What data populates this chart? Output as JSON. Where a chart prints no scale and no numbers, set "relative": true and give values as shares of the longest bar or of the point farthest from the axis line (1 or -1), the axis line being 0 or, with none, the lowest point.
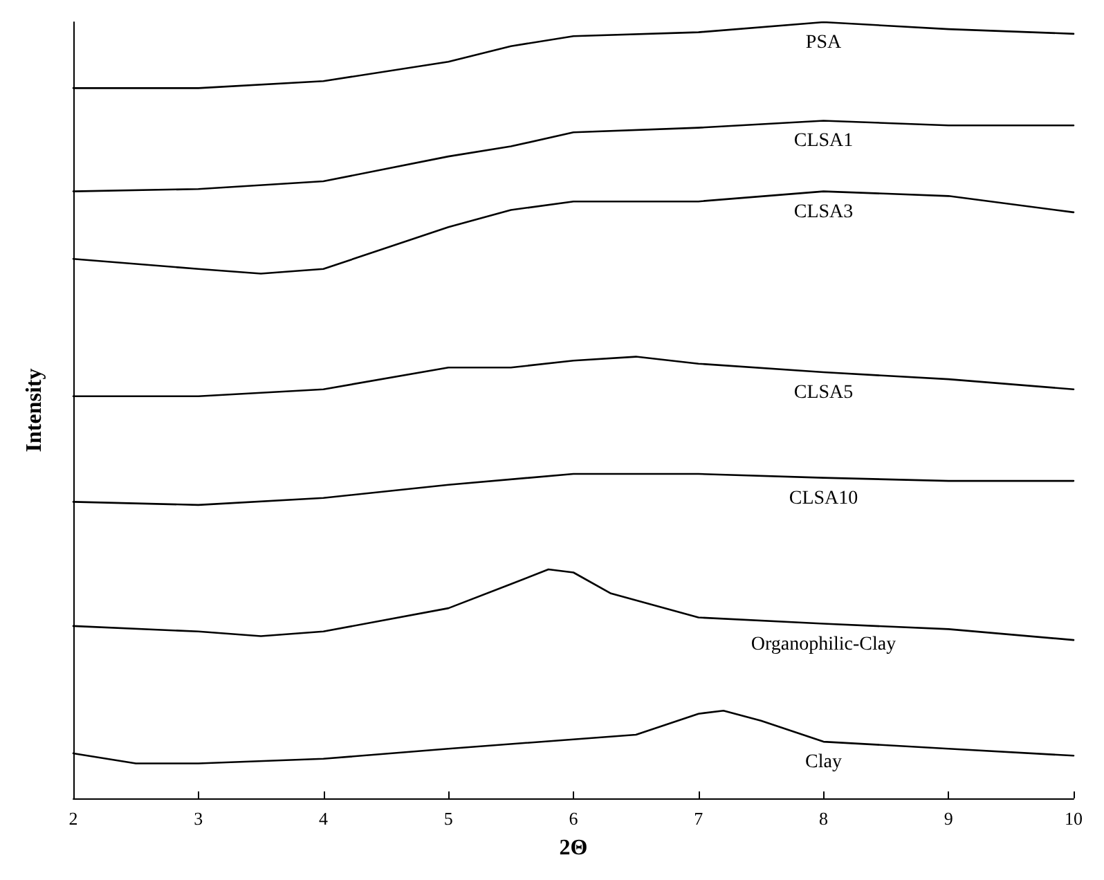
{
  "chart_data": {
    "type": "line",
    "relative": true,
    "xlabel": "2Θ",
    "ylabel": "Intensity",
    "xlim": [
      2,
      10
    ],
    "xticks": [
      2,
      3,
      4,
      5,
      6,
      7,
      8,
      9,
      10
    ],
    "grid": false,
    "legend": false,
    "marker": "none",
    "line_style": "solid",
    "series": [
      {
        "name": "PSA",
        "color": "#000000",
        "x": [
          2,
          3,
          4,
          5,
          5.5,
          6,
          7,
          8,
          9,
          10
        ],
        "values": [
          0.915,
          0.915,
          0.924,
          0.949,
          0.969,
          0.982,
          0.987,
          1.0,
          0.991,
          0.985
        ]
      },
      {
        "name": "CLSA1",
        "color": "#000000",
        "x": [
          2,
          3,
          4,
          5,
          5.5,
          6,
          7,
          8,
          9,
          10
        ],
        "values": [
          0.782,
          0.785,
          0.795,
          0.827,
          0.84,
          0.858,
          0.864,
          0.873,
          0.867,
          0.867
        ]
      },
      {
        "name": "CLSA3",
        "color": "#000000",
        "x": [
          2,
          3,
          3.5,
          4,
          5,
          5.5,
          6,
          7,
          8,
          9,
          10
        ],
        "values": [
          0.695,
          0.682,
          0.676,
          0.682,
          0.736,
          0.758,
          0.769,
          0.769,
          0.782,
          0.776,
          0.755
        ]
      },
      {
        "name": "CLSA5",
        "color": "#000000",
        "x": [
          2,
          3,
          4,
          5,
          5.5,
          6,
          6.5,
          7,
          8,
          9,
          10
        ],
        "values": [
          0.518,
          0.518,
          0.527,
          0.555,
          0.555,
          0.564,
          0.569,
          0.56,
          0.549,
          0.54,
          0.527
        ]
      },
      {
        "name": "CLSA10",
        "color": "#000000",
        "x": [
          2,
          3,
          4,
          5,
          6,
          7,
          8,
          9,
          10
        ],
        "values": [
          0.382,
          0.378,
          0.387,
          0.404,
          0.418,
          0.418,
          0.413,
          0.409,
          0.409
        ]
      },
      {
        "name": "Organophilic-Clay",
        "color": "#000000",
        "x": [
          2,
          3,
          3.5,
          4,
          5,
          5.5,
          5.8,
          6,
          6.3,
          7,
          8,
          9,
          10
        ],
        "values": [
          0.222,
          0.215,
          0.209,
          0.215,
          0.245,
          0.276,
          0.295,
          0.291,
          0.264,
          0.233,
          0.225,
          0.218,
          0.204
        ]
      },
      {
        "name": "Clay",
        "color": "#000000",
        "x": [
          2,
          2.5,
          3,
          4,
          5,
          6,
          6.5,
          7,
          7.2,
          7.5,
          8,
          9,
          10
        ],
        "values": [
          0.058,
          0.045,
          0.045,
          0.051,
          0.064,
          0.076,
          0.082,
          0.109,
          0.113,
          0.1,
          0.073,
          0.064,
          0.055
        ]
      }
    ]
  }
}
